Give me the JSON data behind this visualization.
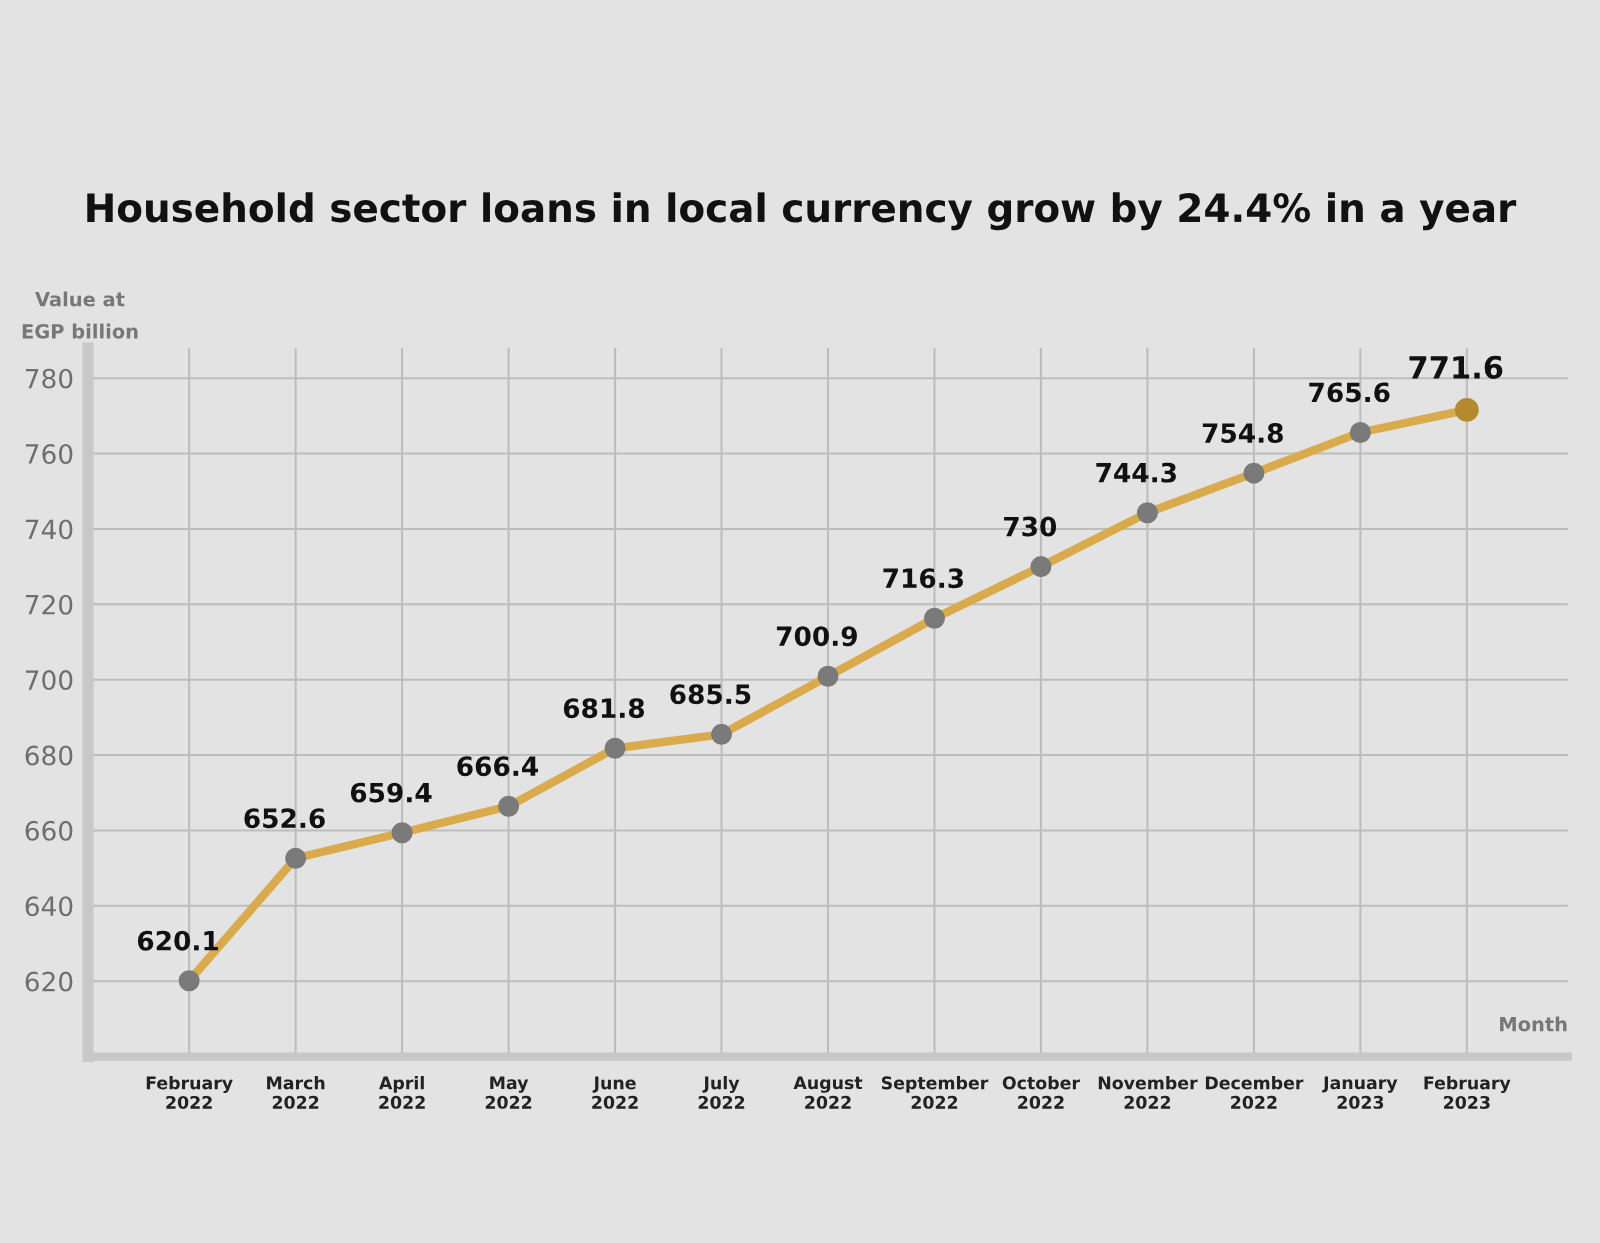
{
  "chart_data": {
    "type": "line",
    "title": "Household sector loans in local currency grow by 24.4% in a year",
    "ylabel": "Value at\nEGP billion",
    "xlabel": "Month",
    "categories": [
      "February\n2022",
      "March\n2022",
      "April\n2022",
      "May\n2022",
      "June\n2022",
      "July\n2022",
      "August\n2022",
      "September\n2022",
      "October\n2022",
      "November\n2022",
      "December\n2022",
      "January\n2023",
      "February\n2023"
    ],
    "series": [
      {
        "color": "#d9ab4c",
        "colors": [
          "#7a7a7a",
          "#7a7a7a",
          "#7a7a7a",
          "#7a7a7a",
          "#7a7a7a",
          "#7a7a7a",
          "#7a7a7a",
          "#7a7a7a",
          "#7a7a7a",
          "#7a7a7a",
          "#7a7a7a",
          "#7a7a7a",
          "#b38a2e"
        ],
        "values": [
          620.1,
          652.6,
          659.4,
          666.4,
          681.8,
          685.5,
          700.9,
          716.3,
          730,
          744.3,
          754.8,
          765.6,
          771.6
        ]
      }
    ],
    "ylim": [
      600,
      788
    ],
    "yticks": [
      620,
      640,
      660,
      680,
      700,
      720,
      740,
      760,
      780
    ],
    "grid": true,
    "marker": "circle",
    "line_style": "solid",
    "data_labels": true
  }
}
